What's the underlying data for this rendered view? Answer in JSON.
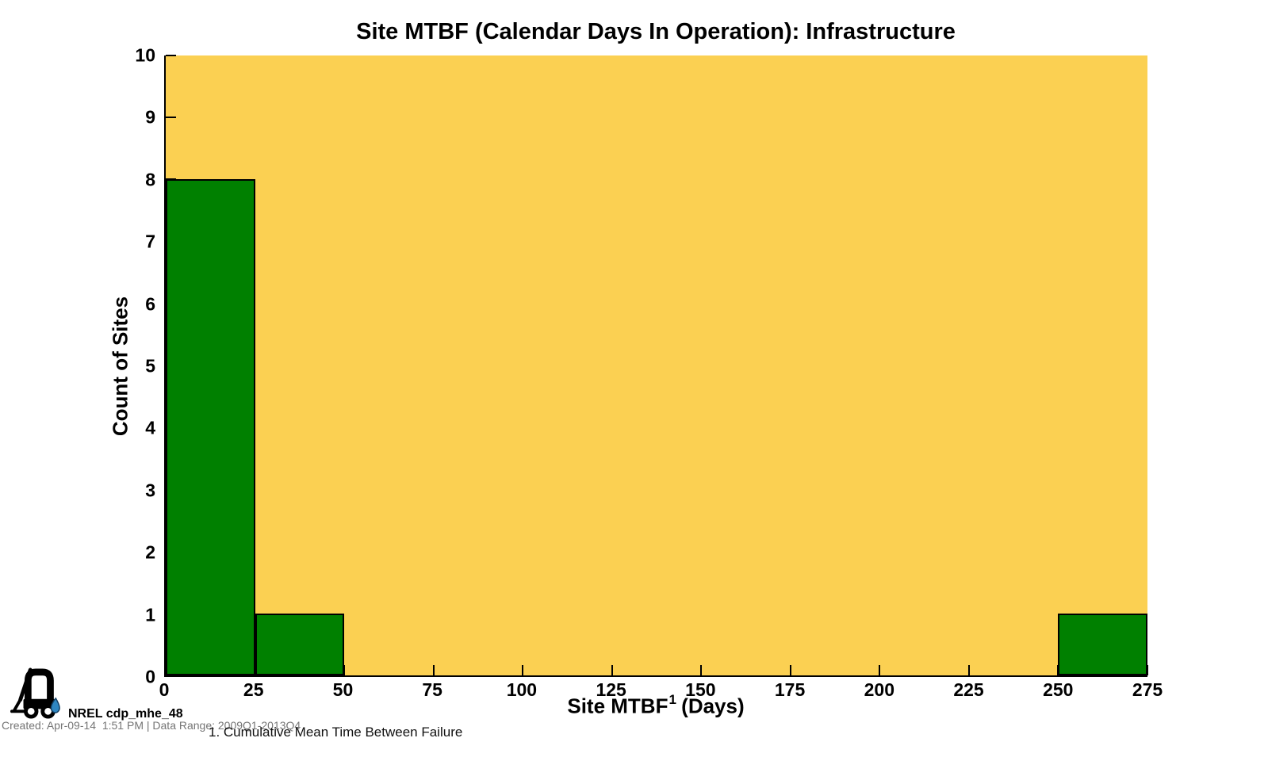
{
  "chart_data": {
    "type": "bar",
    "subtype": "histogram",
    "title": "Site MTBF (Calendar Days In Operation): Infrastructure",
    "xlabel": {
      "text": "Site MTBF",
      "superscript": "1",
      "suffix": " (Days)"
    },
    "ylabel": "Count of Sites",
    "xlim": [
      0,
      275
    ],
    "ylim": [
      0,
      10
    ],
    "xticks": [
      0,
      25,
      50,
      75,
      100,
      125,
      150,
      175,
      200,
      225,
      250,
      275
    ],
    "yticks": [
      0,
      1,
      2,
      3,
      4,
      5,
      6,
      7,
      8,
      9,
      10
    ],
    "bins": [
      {
        "range": [
          0,
          25
        ],
        "count": 8
      },
      {
        "range": [
          25,
          50
        ],
        "count": 1
      },
      {
        "range": [
          250,
          275
        ],
        "count": 1
      }
    ],
    "legend": "none",
    "grid": false,
    "colors": {
      "plot_background": "#FBD052",
      "bar_fill": "#008000",
      "bar_outline": "#000000",
      "axis": "#000000"
    }
  },
  "footer": {
    "logo_icon": "forklift-with-droplet-icon",
    "dataset_id": "NREL cdp_mhe_48",
    "created": "Created: Apr-09-14  1:51 PM | Data Range: 2009Q1-2013Q4",
    "footnote": "1. Cumulative Mean Time Between Failure",
    "droplet_color": "#2E86C1"
  }
}
